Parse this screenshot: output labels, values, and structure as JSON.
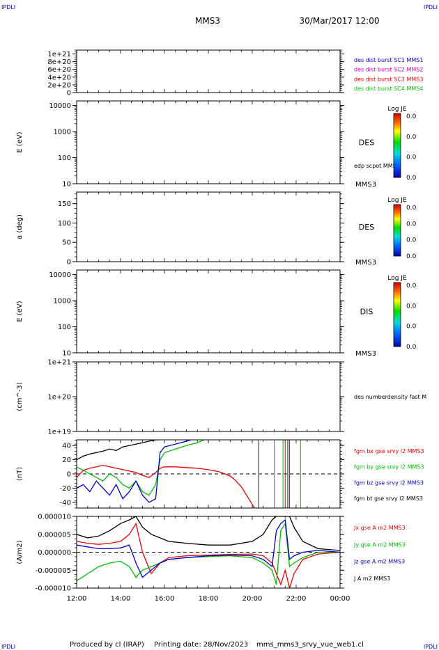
{
  "header": {
    "corner_tl": "IPDLI",
    "corner_tr": "IPDLI",
    "corner_bl": "IPDLI",
    "corner_br": "IPDLI",
    "spacecraft": "MMS3",
    "datetime": "30/Mar/2017 12:00"
  },
  "footer": {
    "produced": "Produced by cl (IRAP)",
    "printing": "Printing date: 28/Nov/2023",
    "file": "mms_mms3_srvy_vue_web1.cl"
  },
  "colors": {
    "mms1": "#0000cc",
    "mms2": "#cc00cc",
    "mms3": "#ee0000",
    "mms4": "#00bb00",
    "black": "#000000"
  },
  "chart_data": [
    {
      "type": "line",
      "panel": 1,
      "ylabel": "",
      "yticks": [
        "1e+21",
        "8e+20",
        "6e+20",
        "4e+20",
        "2e+20",
        "0"
      ],
      "ylim": [
        0,
        1.1e+21
      ],
      "zero_line": true,
      "legend": [
        {
          "text": "des dist burst SC1 MMS1",
          "color": "#0000cc"
        },
        {
          "text": "des dist burst SC2 MMS2",
          "color": "#cc00cc"
        },
        {
          "text": "des dist burst SC3 MMS3",
          "color": "#ee0000"
        },
        {
          "text": "des dist burst SC4 MMS4",
          "color": "#00bb00"
        }
      ]
    },
    {
      "type": "heatmap",
      "panel": 2,
      "ylabel": "E (eV)",
      "yscale": "log",
      "yticks": [
        "10000",
        "1000",
        "100",
        "10"
      ],
      "ylim": [
        10,
        15000
      ],
      "label": "DES",
      "overlay_label": "edp scpot MMS3",
      "sc_label": "MMS3",
      "colorbar": {
        "title": "Log JE",
        "ticks": [
          "0.0",
          "0.0",
          "0.0",
          "0.0"
        ]
      }
    },
    {
      "type": "heatmap",
      "panel": 3,
      "ylabel": "a (deg)",
      "yticks": [
        "150",
        "100",
        "50",
        "0"
      ],
      "ylim": [
        0,
        180
      ],
      "label": "DES",
      "sc_label": "MMS3",
      "colorbar": {
        "title": "Log JE",
        "ticks": [
          "0.0",
          "0.0",
          "0.0",
          "0.0"
        ]
      }
    },
    {
      "type": "heatmap",
      "panel": 4,
      "ylabel": "E (eV)",
      "yscale": "log",
      "yticks": [
        "10000",
        "1000",
        "100",
        "10"
      ],
      "ylim": [
        10,
        15000
      ],
      "label": "DIS",
      "sc_label": "MMS3",
      "colorbar": {
        "title": "Log JE",
        "ticks": [
          "0.0",
          "0.0",
          "0.0",
          "0.0"
        ]
      }
    },
    {
      "type": "line",
      "panel": 5,
      "ylabel": "(cm^-3)",
      "yscale": "log",
      "yticks": [
        "1e+21",
        "1e+20",
        "1e+19"
      ],
      "ylim": [
        1e+19,
        1e+21
      ],
      "legend": [
        {
          "text": "des numberdensity fast M",
          "color": "#000000"
        }
      ]
    },
    {
      "type": "line",
      "panel": 6,
      "ylabel": "(nT)",
      "yticks": [
        "40",
        "20",
        "0",
        "-20",
        "-40"
      ],
      "ylim": [
        -48,
        48
      ],
      "zero_line": true,
      "legend": [
        {
          "text": "fgm bx gse srvy l2 MMS3",
          "color": "#ee0000"
        },
        {
          "text": "fgm by gse srvy l2 MMS3",
          "color": "#00bb00"
        },
        {
          "text": "fgm bz gse srvy l2 MMS3",
          "color": "#0000cc"
        },
        {
          "text": "fgm bt gse srvy l2 MMS3",
          "color": "#000000"
        }
      ],
      "series": [
        {
          "name": "fgm bx gse srvy l2 MMS3",
          "color": "#ee0000",
          "x": [
            0,
            0.3,
            0.6,
            0.9,
            1.2,
            1.5,
            1.8,
            2.1,
            2.4,
            2.7,
            3.0,
            3.3,
            3.6,
            3.8,
            4.0,
            4.5,
            5.0,
            5.5,
            6.0,
            6.5,
            7.0,
            7.2,
            7.5,
            7.7,
            7.9,
            8.1
          ],
          "y": [
            -5,
            5,
            8,
            10,
            12,
            10,
            8,
            6,
            4,
            2,
            -2,
            -5,
            2,
            8,
            10,
            10,
            9,
            8,
            6,
            3,
            -3,
            -8,
            -18,
            -28,
            -38,
            -48
          ]
        },
        {
          "name": "fgm by gse srvy l2 MMS3",
          "color": "#00bb00",
          "x": [
            0,
            0.3,
            0.6,
            0.9,
            1.2,
            1.5,
            1.8,
            2.1,
            2.4,
            2.7,
            3.0,
            3.3,
            3.6,
            3.8,
            4.0,
            4.5,
            5.0,
            5.5,
            5.8
          ],
          "y": [
            10,
            5,
            0,
            -5,
            -10,
            0,
            -5,
            -15,
            -20,
            -10,
            -25,
            -30,
            -15,
            20,
            30,
            35,
            40,
            44,
            48
          ]
        },
        {
          "name": "fgm bz gse srvy l2 MMS3",
          "color": "#0000cc",
          "x": [
            0,
            0.3,
            0.6,
            0.9,
            1.2,
            1.5,
            1.8,
            2.1,
            2.4,
            2.7,
            3.0,
            3.3,
            3.6,
            3.8,
            4.0,
            4.5,
            5.0,
            5.2
          ],
          "y": [
            -20,
            -15,
            -25,
            -10,
            -20,
            -30,
            -15,
            -35,
            -25,
            -10,
            -30,
            -40,
            -35,
            30,
            38,
            42,
            46,
            48
          ]
        },
        {
          "name": "fgm bt gse srvy l2 MMS3",
          "color": "#000000",
          "x": [
            0,
            0.3,
            0.6,
            0.9,
            1.2,
            1.5,
            1.8,
            2.1,
            2.4,
            2.7,
            3.0,
            3.3,
            3.6,
            3.8
          ],
          "y": [
            20,
            25,
            28,
            30,
            32,
            35,
            33,
            38,
            40,
            42,
            44,
            46,
            48,
            48
          ]
        }
      ],
      "vlines": [
        {
          "x": 8.3,
          "color": "#0000cc"
        },
        {
          "x": 9.0,
          "color": "#00bb00"
        },
        {
          "x": 9.4,
          "color": "#00bb00"
        },
        {
          "x": 9.5,
          "color": "#ee0000"
        },
        {
          "x": 9.62,
          "color": "#000000"
        },
        {
          "x": 9.7,
          "color": "#ee0000"
        },
        {
          "x": 10.2,
          "color": "#00bb00"
        }
      ]
    },
    {
      "type": "line",
      "panel": 7,
      "ylabel": "(A/m2)",
      "yticks": [
        "0.000010",
        "0.000005",
        "0.000000",
        "-0.000005",
        "-0.000010"
      ],
      "ylim": [
        -1e-05,
        1e-05
      ],
      "zero_line": true,
      "xticks": [
        "12:00",
        "14:00",
        "16:00",
        "18:00",
        "20:00",
        "22:00",
        "00:00"
      ],
      "xlim": [
        0,
        12
      ],
      "legend": [
        {
          "text": "Jx gse A m2 MMS3",
          "color": "#ee0000"
        },
        {
          "text": "Jy gse A m2 MMS3",
          "color": "#00bb00"
        },
        {
          "text": "Jz gse A m2 MMS3",
          "color": "#0000cc"
        },
        {
          "text": "J A m2 MMS3",
          "color": "#000000"
        }
      ],
      "series": [
        {
          "name": "Jx gse A m2 MMS3",
          "color": "#ee0000",
          "x": [
            0,
            0.5,
            1.0,
            1.5,
            2.0,
            2.4,
            2.7,
            3.0,
            3.4,
            3.8,
            4.2,
            5,
            6,
            7,
            8,
            8.5,
            8.9,
            9.1,
            9.3,
            9.5,
            9.7,
            9.9,
            10.3,
            11,
            12
          ],
          "y": [
            3e-06,
            2.5e-06,
            2.2e-06,
            2.5e-06,
            3e-06,
            5e-06,
            8e-06,
            0,
            -6e-06,
            -3e-06,
            -1.5e-06,
            -1e-06,
            -8e-07,
            -6e-07,
            -5e-07,
            -1e-06,
            -3e-06,
            -6e-06,
            -9e-06,
            -5e-06,
            -1e-05,
            -6e-06,
            -2e-06,
            -5e-07,
            0
          ]
        },
        {
          "name": "Jy gse A m2 MMS3",
          "color": "#00bb00",
          "x": [
            0,
            0.5,
            1.0,
            1.5,
            2.0,
            2.4,
            2.7,
            3.0,
            3.4,
            3.8,
            4.2,
            5,
            6,
            7,
            8,
            8.5,
            8.9,
            9.1,
            9.3,
            9.5,
            9.7,
            9.9,
            10.3,
            11,
            12
          ],
          "y": [
            -8e-06,
            -6e-06,
            -4e-06,
            -3e-06,
            -2.5e-06,
            -4e-06,
            -7e-06,
            -5e-06,
            -4e-06,
            -3e-06,
            -2e-06,
            -1.5e-06,
            -1.2e-06,
            -1e-06,
            -1.5e-06,
            -3e-06,
            -5e-06,
            -9e-06,
            6e-06,
            8e-06,
            -4e-06,
            -3e-06,
            -1.5e-06,
            0,
            0
          ]
        },
        {
          "name": "Jz gse A m2 MMS3",
          "color": "#0000cc",
          "x": [
            0,
            0.5,
            1.0,
            1.5,
            2.0,
            2.4,
            2.7,
            3.0,
            3.4,
            3.8,
            4.2,
            5,
            6,
            7,
            8,
            8.5,
            8.9,
            9.1,
            9.3,
            9.5,
            9.7,
            9.9,
            10.3,
            11,
            12
          ],
          "y": [
            2e-06,
            1.5e-06,
            1e-06,
            1e-06,
            1.2e-06,
            2e-06,
            -3e-06,
            -7e-06,
            -5e-06,
            -3e-06,
            -2e-06,
            -1.5e-06,
            -1e-06,
            -8e-07,
            -1e-06,
            -2e-06,
            -4e-06,
            6e-06,
            8e-06,
            9e-06,
            -2e-06,
            -1e-06,
            0,
            5e-07,
            0
          ]
        },
        {
          "name": "J A m2 MMS3",
          "color": "#000000",
          "x": [
            0,
            0.5,
            1.0,
            1.5,
            2.0,
            2.4,
            2.7,
            3.0,
            3.4,
            3.8,
            4.2,
            5,
            6,
            7,
            8,
            8.5,
            8.9,
            9.1,
            9.3,
            9.5,
            9.7,
            9.9,
            10.3,
            11,
            12
          ],
          "y": [
            5e-06,
            4e-06,
            4.5e-06,
            6e-06,
            8e-06,
            9e-06,
            1e-05,
            7e-06,
            5e-06,
            4e-06,
            3e-06,
            2.5e-06,
            2e-06,
            2e-06,
            3e-06,
            5e-06,
            9e-06,
            1e-05,
            1e-05,
            1e-05,
            1e-05,
            7e-06,
            3e-06,
            1e-06,
            5e-07
          ]
        }
      ]
    }
  ]
}
